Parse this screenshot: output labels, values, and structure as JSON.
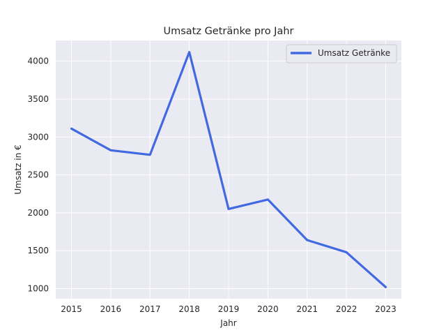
{
  "chart_data": {
    "type": "line",
    "title": "Umsatz Getränke pro Jahr",
    "xlabel": "Jahr",
    "ylabel": "Umsatz in €",
    "x": [
      2015,
      2016,
      2017,
      2018,
      2019,
      2020,
      2021,
      2022,
      2023
    ],
    "series": [
      {
        "name": "Umsatz Getränke",
        "values": [
          3110,
          2825,
          2765,
          4120,
          2050,
          2175,
          1640,
          1480,
          1020
        ],
        "color": "#4169e1"
      }
    ],
    "xticks": [
      "2015",
      "2016",
      "2017",
      "2018",
      "2019",
      "2020",
      "2021",
      "2022",
      "2023"
    ],
    "yticks": [
      "1000",
      "1500",
      "2000",
      "2500",
      "3000",
      "3500",
      "4000"
    ],
    "ylim": [
      867,
      4273
    ],
    "grid": true,
    "legend_position": "top-right",
    "style": {
      "background": "#eaeaf2",
      "grid_color": "#ffffff"
    }
  }
}
